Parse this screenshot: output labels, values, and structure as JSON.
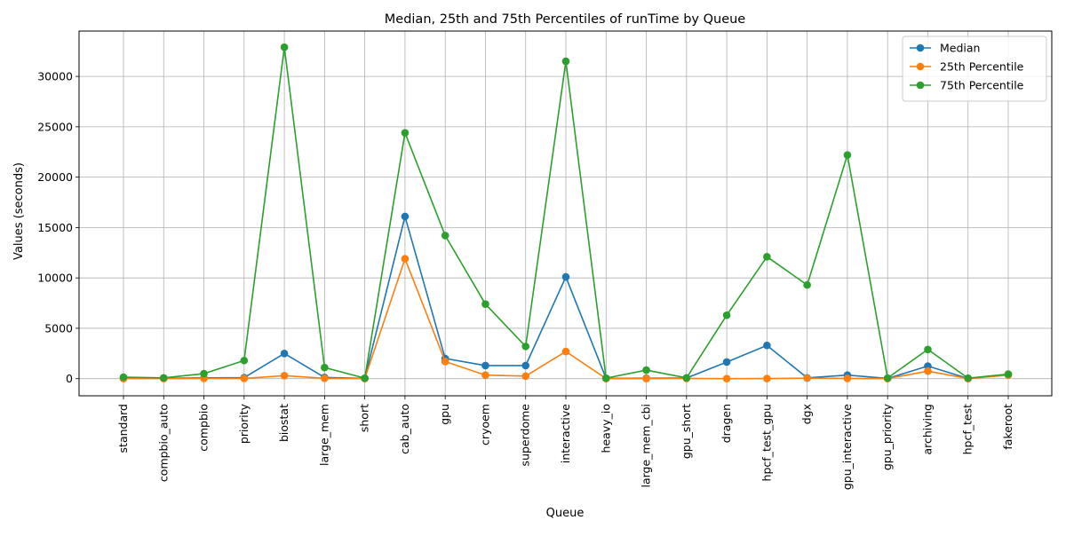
{
  "chart_data": {
    "type": "line",
    "title": "Median, 25th and 75th Percentiles of runTime by Queue",
    "xlabel": "Queue",
    "ylabel": "Values (seconds)",
    "ylim": [
      -1700,
      34500
    ],
    "yticks": [
      0,
      5000,
      10000,
      15000,
      20000,
      25000,
      30000
    ],
    "grid": true,
    "legend_position": "top-right",
    "categories": [
      "standard",
      "compbio_auto",
      "compbio",
      "priority",
      "biostat",
      "large_mem",
      "short",
      "cab_auto",
      "gpu",
      "cryoem",
      "superdome",
      "interactive",
      "heavy_io",
      "large_mem_cbi",
      "gpu_short",
      "dragen",
      "hpcf_test_gpu",
      "dgx",
      "gpu_interactive",
      "gpu_priority",
      "archiving",
      "hpcf_test",
      "fakeroot"
    ],
    "series": [
      {
        "name": "Median",
        "color": "#1f77b4",
        "values": [
          50,
          30,
          80,
          100,
          2500,
          120,
          20,
          16100,
          2000,
          1300,
          1300,
          10100,
          20,
          50,
          60,
          1650,
          3300,
          80,
          350,
          20,
          1250,
          20,
          400
        ]
      },
      {
        "name": "25th Percentile",
        "color": "#ff7f0e",
        "values": [
          10,
          10,
          20,
          20,
          300,
          30,
          10,
          11900,
          1700,
          350,
          250,
          2700,
          5,
          10,
          20,
          5,
          10,
          50,
          20,
          5,
          750,
          5,
          350
        ]
      },
      {
        "name": "75th Percentile",
        "color": "#2ca02c",
        "values": [
          150,
          80,
          500,
          1800,
          32900,
          1100,
          50,
          24400,
          14200,
          7400,
          3200,
          31500,
          50,
          850,
          80,
          6300,
          12100,
          9300,
          22200,
          60,
          2900,
          50,
          450
        ]
      }
    ]
  }
}
